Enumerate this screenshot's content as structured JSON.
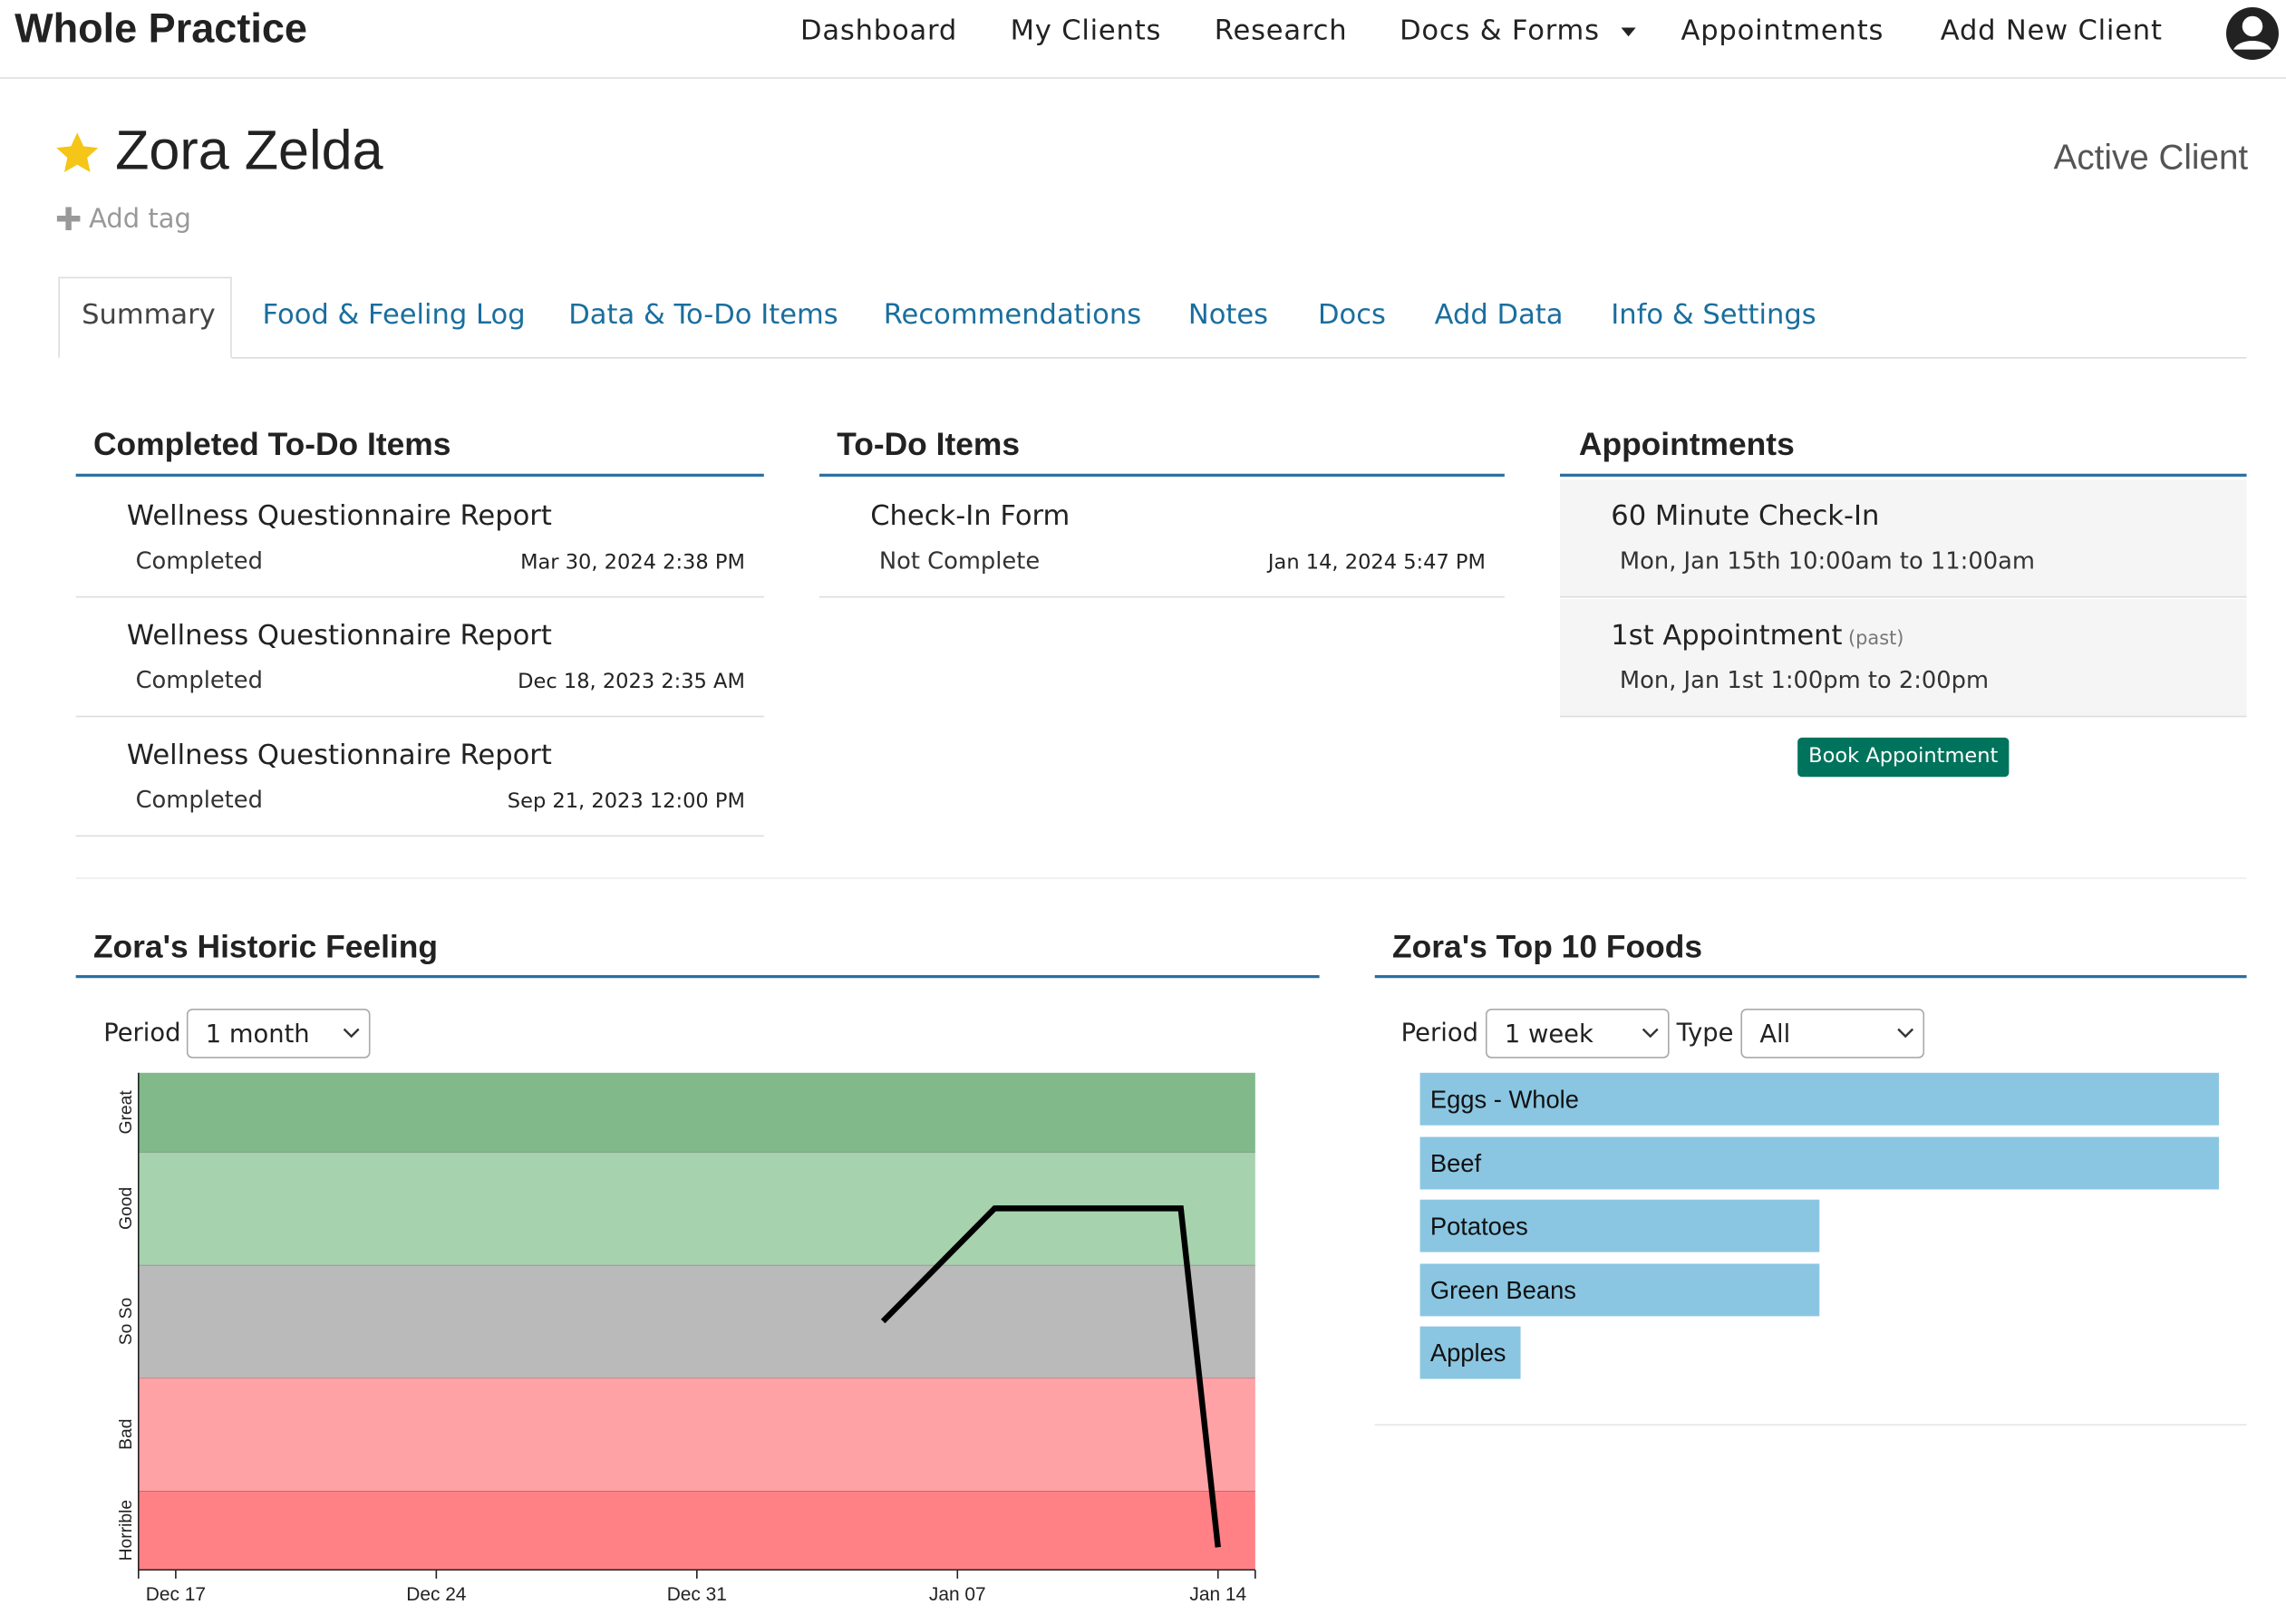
{
  "nav": {
    "brand": "Whole Practice",
    "links": [
      "Dashboard",
      "My Clients",
      "Research",
      "Docs & Forms",
      "Appointments",
      "Add New Client"
    ]
  },
  "client": {
    "name": "Zora Zelda",
    "status": "Active Client",
    "add_tag": "Add tag"
  },
  "tabs": [
    "Summary",
    "Food & Feeling Log",
    "Data & To-Do Items",
    "Recommendations",
    "Notes",
    "Docs",
    "Add Data",
    "Info & Settings"
  ],
  "completed": {
    "title": "Completed To-Do Items",
    "items": [
      {
        "title": "Wellness Questionnaire Report",
        "status": "Completed",
        "date": "Mar 30, 2024 2:38 PM"
      },
      {
        "title": "Wellness Questionnaire Report",
        "status": "Completed",
        "date": "Dec 18, 2023 2:35 AM"
      },
      {
        "title": "Wellness Questionnaire Report",
        "status": "Completed",
        "date": "Sep 21, 2023 12:00 PM"
      }
    ]
  },
  "todo": {
    "title": "To-Do Items",
    "items": [
      {
        "title": "Check-In Form",
        "status": "Not Complete",
        "date": "Jan 14, 2024 5:47 PM"
      }
    ]
  },
  "appointments": {
    "title": "Appointments",
    "items": [
      {
        "title": "60 Minute Check-In",
        "time": "Mon, Jan 15th 10:00am to 11:00am"
      },
      {
        "title": "1st Appointment",
        "note": "(past)",
        "time": "Mon, Jan 1st 1:00pm to 2:00pm"
      }
    ],
    "button": "Book Appointment"
  },
  "feeling": {
    "title": "Zora's Historic Feeling",
    "period_label": "Period",
    "period": "1 month",
    "chart_data": {
      "type": "line",
      "x": [
        "Jan 05",
        "Jan 08",
        "Jan 13",
        "Jan 14"
      ],
      "values": [
        3,
        4,
        4,
        1
      ],
      "color": "#000000",
      "xlim": [
        "Dec 16",
        "Jan 15"
      ],
      "xticks": [
        "Dec 17",
        "Dec 24",
        "Dec 31",
        "Jan 07",
        "Jan 14"
      ],
      "ylim": [
        0.8,
        5.2
      ],
      "yticks": [
        {
          "value": 1,
          "label": "Horrible"
        },
        {
          "value": 2,
          "label": "Bad"
        },
        {
          "value": 3,
          "label": "So So"
        },
        {
          "value": 4,
          "label": "Good"
        },
        {
          "value": 5,
          "label": "Great"
        }
      ],
      "band_colors": [
        "#ff8185",
        "#fea2a6",
        "#bababa",
        "#a6d2ad",
        "#81b98a"
      ]
    }
  },
  "foods": {
    "title": "Zora's Top 10 Foods",
    "period_label": "Period",
    "period": "1 week",
    "type_label": "Type",
    "type": "All",
    "chart_data": {
      "type": "bar",
      "orientation": "horizontal",
      "categories": [
        "Eggs - Whole",
        "Beef",
        "Potatoes",
        "Green Beans",
        "Apples"
      ],
      "values": [
        8,
        8,
        4,
        4,
        1
      ],
      "xlim": [
        0,
        8
      ],
      "color": "#8ac6e2"
    }
  }
}
